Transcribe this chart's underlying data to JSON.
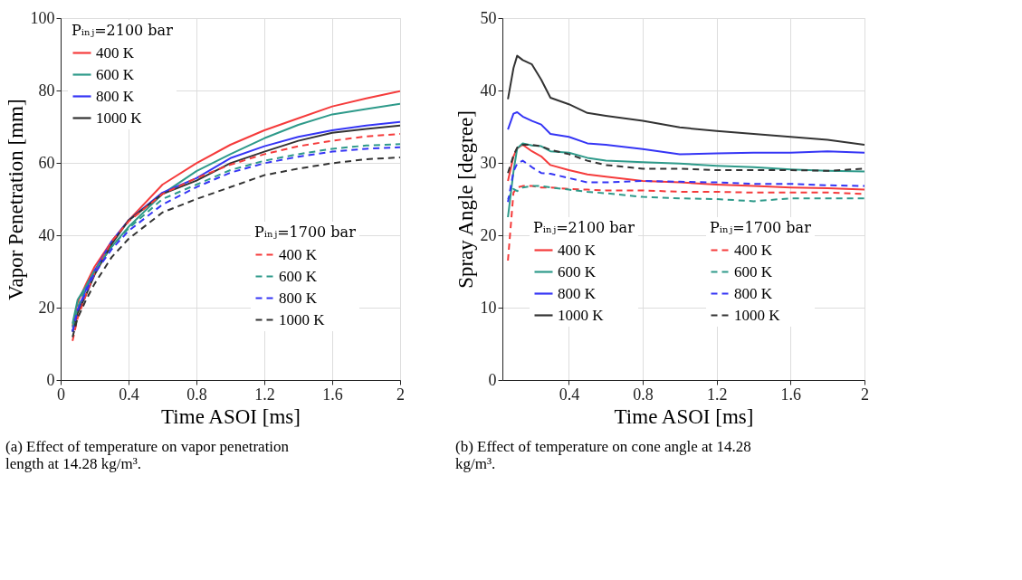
{
  "chart_data": [
    {
      "type": "line",
      "xlabel": "Time ASOI [ms]",
      "ylabel": "Vapor Penetration [mm]",
      "xlim": [
        0,
        2
      ],
      "xticks": [
        0,
        0.4,
        0.8,
        1.2,
        1.6,
        2
      ],
      "ylim": [
        0,
        100
      ],
      "yticks": [
        0,
        20,
        40,
        60,
        80,
        100
      ],
      "grid": true,
      "legend": "top left",
      "x": [
        0.07,
        0.1,
        0.15,
        0.2,
        0.3,
        0.4,
        0.6,
        0.8,
        1.0,
        1.2,
        1.4,
        1.6,
        1.8,
        2.0
      ],
      "annotations": [
        "Pᵢₙⱼ=2100 bar",
        "Pᵢₙⱼ=1700 bar",
        "(a) Effect of temperature on vapor penetration length at 14.28 kg/m³."
      ],
      "series": [
        {
          "name": "400 K",
          "color": "#f53b3b",
          "line_style": "solid",
          "values": [
            14.9,
            21.4,
            26.6,
            31.3,
            38.3,
            44.1,
            54.0,
            59.9,
            65.0,
            69.0,
            72.3,
            75.6,
            77.8,
            79.8
          ]
        },
        {
          "name": "600 K",
          "color": "#2e9a8a",
          "line_style": "solid",
          "values": [
            15.6,
            22.2,
            25.9,
            30.3,
            36.8,
            42.3,
            51.4,
            57.7,
            62.4,
            66.8,
            70.5,
            73.4,
            74.9,
            76.3
          ]
        },
        {
          "name": "800 K",
          "color": "#3535f5",
          "line_style": "solid",
          "values": [
            13.4,
            19.3,
            25.1,
            30.2,
            38.3,
            44.1,
            51.8,
            55.8,
            61.3,
            64.6,
            67.2,
            69.0,
            70.3,
            71.3
          ]
        },
        {
          "name": "1000 K",
          "color": "#333333",
          "line_style": "solid",
          "values": [
            13.4,
            18.5,
            23.6,
            29.1,
            37.5,
            44.1,
            51.4,
            55.1,
            59.9,
            63.1,
            66.1,
            68.3,
            69.4,
            70.3
          ]
        },
        {
          "name": "400 K",
          "color": "#f53b3b",
          "line_style": "dashed",
          "values": [
            10.8,
            17.1,
            23.6,
            29.5,
            38.3,
            43.8,
            51.4,
            55.8,
            59.5,
            62.4,
            64.6,
            66.1,
            67.3,
            68.0
          ]
        },
        {
          "name": "600 K",
          "color": "#2e9a8a",
          "line_style": "dashed",
          "values": [
            14.5,
            20.0,
            25.9,
            30.2,
            36.8,
            41.9,
            50.0,
            54.0,
            58.0,
            60.6,
            62.4,
            63.9,
            64.8,
            65.2
          ]
        },
        {
          "name": "800 K",
          "color": "#3535f5",
          "line_style": "dashed",
          "values": [
            13.4,
            19.3,
            24.4,
            29.5,
            36.1,
            41.2,
            48.5,
            53.3,
            57.3,
            59.9,
            61.7,
            63.1,
            63.9,
            64.3
          ]
        },
        {
          "name": "1000 K",
          "color": "#333333",
          "line_style": "dashed",
          "values": [
            11.9,
            17.1,
            22.2,
            26.6,
            33.9,
            39.0,
            46.3,
            50.0,
            53.3,
            56.6,
            58.4,
            59.9,
            61.0,
            61.5
          ]
        }
      ]
    },
    {
      "type": "line",
      "xlabel": "Time ASOI [ms]",
      "ylabel": "Spray Angle [degree]",
      "xlim": [
        0.04,
        2
      ],
      "xticks": [
        0.4,
        0.8,
        1.2,
        1.6,
        2
      ],
      "ylim": [
        0,
        50
      ],
      "yticks": [
        0,
        10,
        20,
        30,
        40,
        50
      ],
      "grid": true,
      "legend": "bottom",
      "x": [
        0.07,
        0.1,
        0.12,
        0.15,
        0.2,
        0.25,
        0.3,
        0.4,
        0.5,
        0.6,
        0.8,
        1.0,
        1.2,
        1.4,
        1.6,
        1.8,
        2.0
      ],
      "annotations": [
        "Pᵢₙⱼ=2100 bar",
        "Pᵢₙⱼ=1700 bar",
        "(b) Effect of temperature on cone angle at 14.28 kg/m³."
      ],
      "series": [
        {
          "name": "400 K",
          "color": "#f53b3b",
          "line_style": "solid",
          "values": [
            27.5,
            30.9,
            32.0,
            32.5,
            31.6,
            30.9,
            29.7,
            29.0,
            28.4,
            28.1,
            27.5,
            27.3,
            27.0,
            26.8,
            26.6,
            26.5,
            26.3
          ]
        },
        {
          "name": "600 K",
          "color": "#2e9a8a",
          "line_style": "solid",
          "values": [
            22.5,
            28.8,
            32.0,
            32.7,
            32.4,
            32.3,
            31.6,
            31.4,
            30.7,
            30.3,
            30.1,
            29.9,
            29.6,
            29.4,
            29.1,
            28.9,
            28.8
          ]
        },
        {
          "name": "800 K",
          "color": "#3535f5",
          "line_style": "solid",
          "values": [
            34.6,
            36.8,
            37.0,
            36.4,
            35.8,
            35.3,
            34.0,
            33.6,
            32.7,
            32.5,
            31.9,
            31.2,
            31.3,
            31.4,
            31.4,
            31.6,
            31.4
          ]
        },
        {
          "name": "1000 K",
          "color": "#333333",
          "line_style": "solid",
          "values": [
            38.8,
            43.1,
            44.8,
            44.2,
            43.6,
            41.5,
            39.0,
            38.1,
            36.9,
            36.5,
            35.8,
            34.9,
            34.4,
            34.0,
            33.6,
            33.2,
            32.5
          ]
        },
        {
          "name": "400 K",
          "color": "#f53b3b",
          "line_style": "dashed",
          "values": [
            16.5,
            25.9,
            26.6,
            26.8,
            26.8,
            26.6,
            26.6,
            26.4,
            26.3,
            26.2,
            26.2,
            26.0,
            26.0,
            25.9,
            25.9,
            25.9,
            25.7
          ]
        },
        {
          "name": "600 K",
          "color": "#2e9a8a",
          "line_style": "dashed",
          "values": [
            25.0,
            26.4,
            26.1,
            26.6,
            26.8,
            26.8,
            26.6,
            26.3,
            26.0,
            25.8,
            25.3,
            25.1,
            25.0,
            24.7,
            25.1,
            25.1,
            25.1
          ]
        },
        {
          "name": "800 K",
          "color": "#3535f5",
          "line_style": "dashed",
          "values": [
            24.6,
            28.8,
            29.9,
            30.3,
            29.4,
            28.6,
            28.5,
            27.9,
            27.3,
            27.3,
            27.5,
            27.4,
            27.3,
            27.1,
            27.1,
            26.9,
            26.8
          ]
        },
        {
          "name": "1000 K",
          "color": "#333333",
          "line_style": "dashed",
          "values": [
            28.6,
            31.0,
            32.1,
            32.5,
            32.5,
            32.3,
            31.8,
            31.2,
            30.3,
            29.7,
            29.2,
            29.2,
            29.0,
            29.0,
            29.0,
            28.9,
            29.2
          ]
        }
      ]
    }
  ]
}
